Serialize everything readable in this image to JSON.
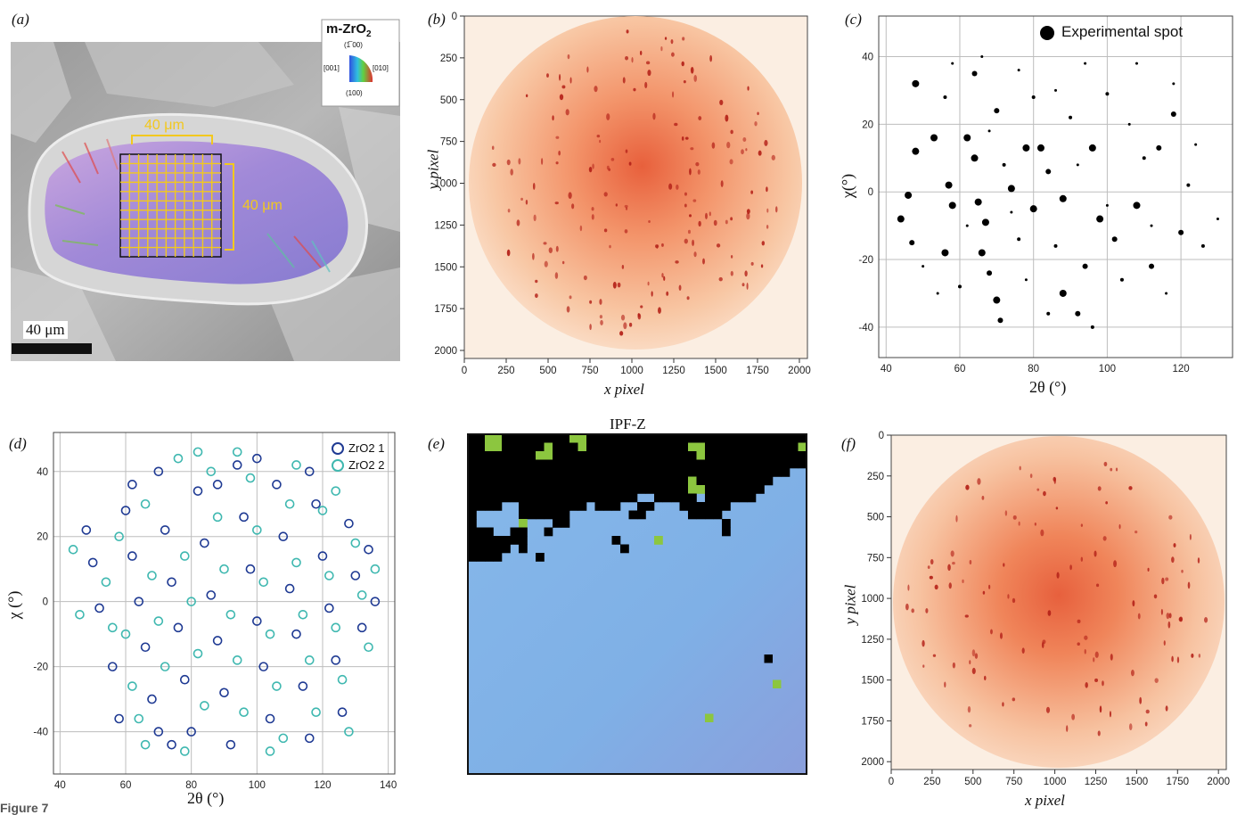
{
  "figure_caption": "Figure 7",
  "panels": {
    "a": {
      "label": "(a)",
      "phase_label": "m-ZrO",
      "phase_sub": "2",
      "ipf_labels": [
        "(1̅ 00)",
        "[001]",
        "[010]",
        "(100)"
      ],
      "grid_width_label": "40 μm",
      "grid_height_label": "40 μm",
      "scalebar_label": "40 μm"
    },
    "b": {
      "label": "(b)",
      "xlabel": "x pixel",
      "ylabel": "y pixel",
      "xticks": [
        "0",
        "250",
        "500",
        "750",
        "1000",
        "1250",
        "1500",
        "1750",
        "2000"
      ],
      "yticks": [
        "0",
        "250",
        "500",
        "750",
        "1000",
        "1250",
        "1500",
        "1750",
        "2000"
      ]
    },
    "c": {
      "label": "(c)",
      "legend": "Experimental spot",
      "xlabel": "2θ (°)",
      "ylabel": "χ(°)",
      "xticks": [
        "40",
        "60",
        "80",
        "100",
        "120"
      ],
      "yticks": [
        "40",
        "20",
        "0",
        "-20",
        "-40"
      ]
    },
    "d": {
      "label": "(d)",
      "legend": [
        "ZrO2 1",
        "ZrO2 2"
      ],
      "xlabel": "2θ (°)",
      "ylabel": "χ (°)",
      "xticks": [
        "40",
        "60",
        "80",
        "100",
        "120",
        "140"
      ],
      "yticks": [
        "40",
        "20",
        "0",
        "-20",
        "-40"
      ]
    },
    "e": {
      "label": "(e)",
      "title": "IPF-Z"
    },
    "f": {
      "label": "(f)",
      "xlabel": "x pixel",
      "ylabel": "y pixel",
      "xticks": [
        "0",
        "250",
        "500",
        "750",
        "1000",
        "1250",
        "1500",
        "1750",
        "2000"
      ],
      "yticks": [
        "0",
        "250",
        "500",
        "750",
        "1000",
        "1250",
        "1500",
        "1750",
        "2000"
      ]
    }
  },
  "colors": {
    "detector_bg": "#fbeee2",
    "detector_mid": "#f6b48a",
    "detector_center": "#e8603c",
    "spot": "#b5231a",
    "ipf_blue": "#7fb2e6",
    "ipf_green": "#8cc63f",
    "zro2_1": "#1f3a93",
    "zro2_2": "#3fb8b0",
    "grid_yellow": "#f2c81e"
  },
  "chart_data": [
    {
      "panel": "c",
      "type": "scatter",
      "title": "",
      "xlabel": "2θ (°)",
      "ylabel": "χ(°)",
      "xlim": [
        38,
        134
      ],
      "ylim": [
        -49,
        52
      ],
      "grid": true,
      "legend_position": "top-right",
      "series": [
        {
          "name": "Experimental spot",
          "points": [
            [
              48,
              32
            ],
            [
              48,
              12
            ],
            [
              46,
              -1
            ],
            [
              44,
              -8
            ],
            [
              47,
              -15
            ],
            [
              53,
              16
            ],
            [
              57,
              2
            ],
            [
              58,
              -4
            ],
            [
              56,
              -18
            ],
            [
              62,
              16
            ],
            [
              64,
              10
            ],
            [
              65,
              -3
            ],
            [
              67,
              -9
            ],
            [
              66,
              -18
            ],
            [
              68,
              -24
            ],
            [
              70,
              -32
            ],
            [
              71,
              -38
            ],
            [
              74,
              1
            ],
            [
              78,
              13
            ],
            [
              80,
              -5
            ],
            [
              82,
              13
            ],
            [
              84,
              6
            ],
            [
              88,
              -2
            ],
            [
              88,
              -30
            ],
            [
              92,
              -36
            ],
            [
              94,
              -22
            ],
            [
              96,
              13
            ],
            [
              98,
              -8
            ],
            [
              102,
              -14
            ],
            [
              108,
              -4
            ],
            [
              112,
              -22
            ],
            [
              114,
              13
            ],
            [
              118,
              23
            ],
            [
              120,
              -12
            ],
            [
              126,
              -16
            ],
            [
              64,
              35
            ],
            [
              70,
              24
            ],
            [
              80,
              28
            ],
            [
              90,
              22
            ],
            [
              100,
              29
            ],
            [
              56,
              28
            ],
            [
              60,
              -28
            ],
            [
              76,
              -14
            ],
            [
              86,
              -16
            ],
            [
              104,
              -26
            ],
            [
              110,
              10
            ],
            [
              122,
              2
            ],
            [
              72,
              8
            ],
            [
              84,
              -36
            ],
            [
              96,
              -40
            ],
            [
              50,
              -22
            ],
            [
              54,
              -30
            ],
            [
              62,
              -10
            ],
            [
              68,
              18
            ],
            [
              74,
              -6
            ],
            [
              78,
              -26
            ],
            [
              86,
              30
            ],
            [
              92,
              8
            ],
            [
              100,
              -4
            ],
            [
              106,
              20
            ],
            [
              112,
              -10
            ],
            [
              116,
              -30
            ],
            [
              124,
              14
            ],
            [
              130,
              -8
            ],
            [
              58,
              38
            ],
            [
              66,
              40
            ],
            [
              76,
              36
            ],
            [
              94,
              38
            ],
            [
              108,
              38
            ],
            [
              118,
              32
            ]
          ],
          "sizes": [
            4,
            4,
            4,
            4,
            3,
            4,
            4,
            4,
            4,
            4,
            4,
            4,
            4,
            4,
            3,
            4,
            3,
            4,
            4,
            4,
            4,
            3,
            4,
            4,
            3,
            3,
            4,
            4,
            3,
            4,
            3,
            3,
            3,
            3,
            2,
            3,
            3,
            2,
            2,
            2,
            2,
            2,
            2,
            2,
            2,
            2,
            2,
            2,
            2,
            2,
            1.5,
            1.5,
            1.5,
            1.5,
            1.5,
            1.5,
            1.5,
            1.5,
            1.5,
            1.5,
            1.5,
            1.5,
            1.5,
            1.5,
            1.5,
            1.5,
            1.5,
            1.5,
            1.5,
            1.5
          ]
        }
      ]
    },
    {
      "panel": "d",
      "type": "scatter",
      "title": "",
      "xlabel": "2θ (°)",
      "ylabel": "χ (°)",
      "xlim": [
        38,
        142
      ],
      "ylim": [
        -53,
        52
      ],
      "grid": true,
      "legend_position": "top-right",
      "series": [
        {
          "name": "ZrO2 1",
          "points": [
            [
              48,
              22
            ],
            [
              50,
              12
            ],
            [
              52,
              -2
            ],
            [
              56,
              -20
            ],
            [
              60,
              28
            ],
            [
              62,
              14
            ],
            [
              64,
              0
            ],
            [
              66,
              -14
            ],
            [
              68,
              -30
            ],
            [
              70,
              40
            ],
            [
              72,
              22
            ],
            [
              74,
              6
            ],
            [
              76,
              -8
            ],
            [
              78,
              -24
            ],
            [
              80,
              -40
            ],
            [
              82,
              34
            ],
            [
              84,
              18
            ],
            [
              86,
              2
            ],
            [
              88,
              -12
            ],
            [
              90,
              -28
            ],
            [
              92,
              -44
            ],
            [
              94,
              42
            ],
            [
              96,
              26
            ],
            [
              98,
              10
            ],
            [
              100,
              -6
            ],
            [
              102,
              -20
            ],
            [
              104,
              -36
            ],
            [
              106,
              36
            ],
            [
              108,
              20
            ],
            [
              110,
              4
            ],
            [
              112,
              -10
            ],
            [
              114,
              -26
            ],
            [
              116,
              -42
            ],
            [
              118,
              30
            ],
            [
              120,
              14
            ],
            [
              122,
              -2
            ],
            [
              124,
              -18
            ],
            [
              126,
              -34
            ],
            [
              128,
              24
            ],
            [
              130,
              8
            ],
            [
              132,
              -8
            ],
            [
              134,
              16
            ],
            [
              136,
              0
            ],
            [
              58,
              -36
            ],
            [
              74,
              -44
            ],
            [
              88,
              36
            ],
            [
              100,
              44
            ],
            [
              116,
              40
            ],
            [
              62,
              36
            ],
            [
              70,
              -40
            ]
          ]
        },
        {
          "name": "ZrO2 2",
          "points": [
            [
              44,
              16
            ],
            [
              46,
              -4
            ],
            [
              54,
              6
            ],
            [
              58,
              20
            ],
            [
              60,
              -10
            ],
            [
              62,
              -26
            ],
            [
              66,
              30
            ],
            [
              68,
              8
            ],
            [
              70,
              -6
            ],
            [
              72,
              -20
            ],
            [
              76,
              44
            ],
            [
              78,
              14
            ],
            [
              80,
              0
            ],
            [
              82,
              -16
            ],
            [
              84,
              -32
            ],
            [
              86,
              40
            ],
            [
              88,
              26
            ],
            [
              90,
              10
            ],
            [
              92,
              -4
            ],
            [
              94,
              -18
            ],
            [
              96,
              -34
            ],
            [
              98,
              38
            ],
            [
              100,
              22
            ],
            [
              102,
              6
            ],
            [
              104,
              -10
            ],
            [
              106,
              -26
            ],
            [
              108,
              -42
            ],
            [
              110,
              30
            ],
            [
              112,
              12
            ],
            [
              114,
              -4
            ],
            [
              116,
              -18
            ],
            [
              118,
              -34
            ],
            [
              120,
              28
            ],
            [
              122,
              8
            ],
            [
              124,
              -8
            ],
            [
              126,
              -24
            ],
            [
              128,
              -40
            ],
            [
              130,
              18
            ],
            [
              132,
              2
            ],
            [
              134,
              -14
            ],
            [
              136,
              10
            ],
            [
              66,
              -44
            ],
            [
              82,
              46
            ],
            [
              94,
              46
            ],
            [
              112,
              42
            ],
            [
              124,
              34
            ],
            [
              56,
              -8
            ],
            [
              64,
              -36
            ],
            [
              78,
              -46
            ],
            [
              104,
              -46
            ]
          ]
        }
      ]
    }
  ]
}
